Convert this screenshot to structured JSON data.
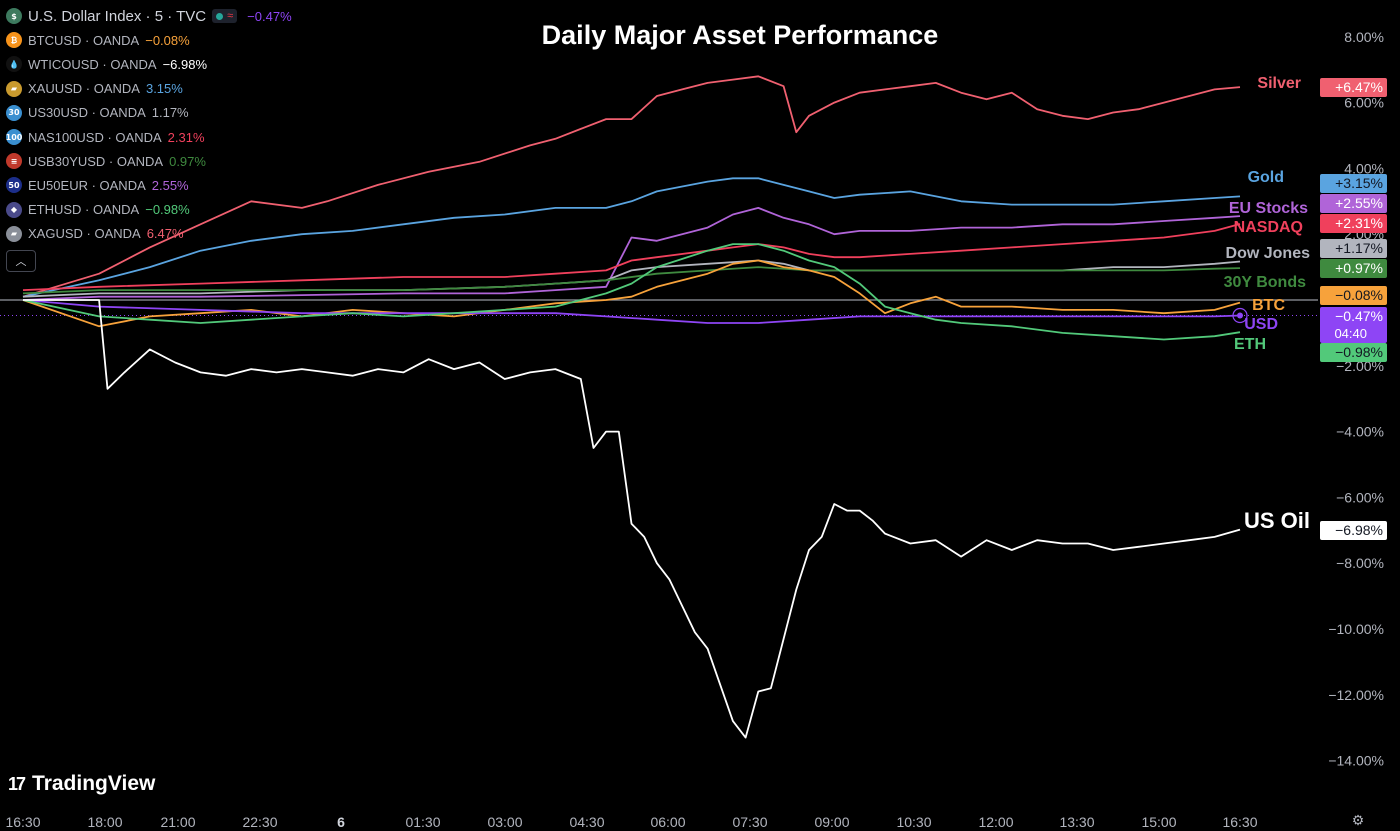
{
  "title": "Daily Major Asset Performance",
  "legend": [
    {
      "symbol": "U.S. Dollar Index · 5 · TVC",
      "change": "−0.47%",
      "color": "#8e45f5",
      "icon": "dollar-icon",
      "icon_bg": "#3d7a5e",
      "icon_text": "$"
    },
    {
      "symbol": "BTCUSD · OANDA",
      "change": "−0.08%",
      "color": "#f7a23b",
      "icon": "bitcoin-icon",
      "icon_bg": "#f7931a",
      "icon_text": "₿"
    },
    {
      "symbol": "WTICOUSD · OANDA",
      "change": "−6.98%",
      "color": "#ffffff",
      "icon": "oil-drop-icon",
      "icon_bg": "#111111",
      "icon_text": "💧"
    },
    {
      "symbol": "XAUUSD · OANDA",
      "change": "3.15%",
      "color": "#5aa4e0",
      "icon": "gold-bars-icon",
      "icon_bg": "#c99a2e",
      "icon_text": "▰"
    },
    {
      "symbol": "US30USD · OANDA",
      "change": "1.17%",
      "color": "#b2b5be",
      "icon": "us30-icon",
      "icon_bg": "#3a8fd0",
      "icon_text": "30"
    },
    {
      "symbol": "NAS100USD · OANDA",
      "change": "2.31%",
      "color": "#f0405c",
      "icon": "nas100-icon",
      "icon_bg": "#3a8fd0",
      "icon_text": "100"
    },
    {
      "symbol": "USB30YUSD · OANDA",
      "change": "0.97%",
      "color": "#3f8a3f",
      "icon": "us-flag-icon",
      "icon_bg": "#c0392b",
      "icon_text": "≡"
    },
    {
      "symbol": "EU50EUR · OANDA",
      "change": "2.55%",
      "color": "#b064d8",
      "icon": "eu50-icon",
      "icon_bg": "#1c2e8a",
      "icon_text": "50"
    },
    {
      "symbol": "ETHUSD · OANDA",
      "change": "−0.98%",
      "color": "#52c97a",
      "icon": "ethereum-icon",
      "icon_bg": "#4a4a8a",
      "icon_text": "◆"
    },
    {
      "symbol": "XAGUSD · OANDA",
      "change": "6.47%",
      "color": "#f06070",
      "icon": "silver-bars-icon",
      "icon_bg": "#8a8f99",
      "icon_text": "▰"
    }
  ],
  "collapse_label": "^",
  "brand": {
    "logo": "17",
    "name": "TradingView"
  },
  "settings_icon": "gear-icon",
  "chart_data": {
    "type": "line",
    "title": "Daily Major Asset Performance",
    "xlabel": "",
    "ylabel": "",
    "x_ticks": [
      "16:30",
      "18:00",
      "21:00",
      "22:30",
      "6",
      "01:30",
      "03:00",
      "04:30",
      "06:00",
      "07:30",
      "09:00",
      "10:30",
      "12:00",
      "13:30",
      "15:00",
      "16:30"
    ],
    "y_ticks": [
      "8.00%",
      "6.00%",
      "4.00%",
      "2.00%",
      "−2.00%",
      "−4.00%",
      "−6.00%",
      "−8.00%",
      "−10.00%",
      "−12.00%",
      "−14.00%"
    ],
    "y_tick_values": [
      8,
      6,
      4,
      2,
      -2,
      -4,
      -6,
      -8,
      -10,
      -12,
      -14
    ],
    "ylim": [
      -15,
      9
    ],
    "grid": false,
    "series": [
      {
        "name": "Silver",
        "end_label": "+6.47%",
        "color": "#f06070",
        "label_color": "#f06070",
        "x": [
          "16:30",
          "18:00",
          "19:00",
          "20:00",
          "21:00",
          "22:00",
          "22:30",
          "23:30",
          "0:30",
          "01:30",
          "02:30",
          "03:00",
          "03:30",
          "04:00",
          "04:30",
          "05:00",
          "05:30",
          "06:00",
          "06:30",
          "07:00",
          "07:30",
          "07:45",
          "08:00",
          "08:30",
          "09:00",
          "09:30",
          "10:00",
          "10:30",
          "11:00",
          "11:30",
          "12:00",
          "12:30",
          "13:00",
          "13:30",
          "14:00",
          "14:30",
          "15:00",
          "15:30",
          "16:00",
          "16:30"
        ],
        "y": [
          0.1,
          0.8,
          1.6,
          2.3,
          3.0,
          2.8,
          3.0,
          3.5,
          3.9,
          4.2,
          4.7,
          4.9,
          5.2,
          5.5,
          5.5,
          6.2,
          6.4,
          6.6,
          6.7,
          6.8,
          6.5,
          5.1,
          5.6,
          6.0,
          6.3,
          6.4,
          6.5,
          6.6,
          6.3,
          6.1,
          6.3,
          5.8,
          5.6,
          5.5,
          5.7,
          5.8,
          6.0,
          6.2,
          6.4,
          6.47
        ]
      },
      {
        "name": "Gold",
        "end_label": "+3.15%",
        "color": "#5aa4e0",
        "label_color": "#5aa4e0",
        "x": [
          "16:30",
          "18:00",
          "19:00",
          "20:00",
          "21:00",
          "22:00",
          "23:00",
          "0:00",
          "01:00",
          "02:00",
          "03:00",
          "04:00",
          "04:30",
          "05:00",
          "06:00",
          "06:30",
          "07:00",
          "07:30",
          "08:00",
          "08:30",
          "09:00",
          "10:00",
          "11:00",
          "12:00",
          "13:00",
          "14:00",
          "15:00",
          "16:00",
          "16:30"
        ],
        "y": [
          0.1,
          0.6,
          1.0,
          1.5,
          1.8,
          2.0,
          2.1,
          2.3,
          2.5,
          2.6,
          2.8,
          2.8,
          3.0,
          3.3,
          3.6,
          3.7,
          3.7,
          3.5,
          3.3,
          3.1,
          3.2,
          3.3,
          3.0,
          2.9,
          2.9,
          2.9,
          3.0,
          3.1,
          3.15
        ]
      },
      {
        "name": "EU Stocks",
        "end_label": "+2.55%",
        "color": "#b064d8",
        "label_color": "#b064d8",
        "x": [
          "16:30",
          "18:00",
          "20:00",
          "22:00",
          "0:00",
          "02:00",
          "03:00",
          "04:00",
          "04:30",
          "05:00",
          "06:00",
          "06:30",
          "07:00",
          "07:30",
          "08:00",
          "08:30",
          "09:00",
          "10:00",
          "11:00",
          "12:00",
          "13:00",
          "14:00",
          "15:00",
          "16:00",
          "16:30"
        ],
        "y": [
          0.0,
          0.1,
          0.1,
          0.15,
          0.2,
          0.2,
          0.3,
          0.4,
          1.9,
          1.8,
          2.2,
          2.6,
          2.8,
          2.5,
          2.3,
          2.0,
          2.1,
          2.1,
          2.2,
          2.2,
          2.3,
          2.3,
          2.4,
          2.5,
          2.55
        ]
      },
      {
        "name": "NASDAQ",
        "end_label": "+2.31%",
        "color": "#f0405c",
        "label_color": "#f0405c",
        "x": [
          "16:30",
          "18:00",
          "20:00",
          "22:00",
          "0:00",
          "02:00",
          "03:00",
          "04:00",
          "04:30",
          "05:00",
          "06:00",
          "06:30",
          "07:00",
          "07:30",
          "08:00",
          "08:30",
          "09:00",
          "10:00",
          "11:00",
          "12:00",
          "13:00",
          "14:00",
          "15:00",
          "16:00",
          "16:30"
        ],
        "y": [
          0.3,
          0.4,
          0.5,
          0.6,
          0.7,
          0.7,
          0.8,
          0.9,
          1.2,
          1.3,
          1.5,
          1.6,
          1.7,
          1.6,
          1.4,
          1.3,
          1.3,
          1.4,
          1.5,
          1.6,
          1.7,
          1.8,
          1.9,
          2.1,
          2.31
        ]
      },
      {
        "name": "Dow Jones",
        "end_label": "+1.17%",
        "color": "#b2b5be",
        "label_color": "#b2b5be",
        "x": [
          "16:30",
          "18:00",
          "20:00",
          "22:00",
          "0:00",
          "02:00",
          "03:00",
          "04:00",
          "04:30",
          "05:00",
          "06:00",
          "07:00",
          "07:30",
          "08:00",
          "09:00",
          "10:00",
          "11:00",
          "12:00",
          "13:00",
          "14:00",
          "15:00",
          "16:00",
          "16:30"
        ],
        "y": [
          0.1,
          0.2,
          0.2,
          0.3,
          0.3,
          0.4,
          0.5,
          0.6,
          0.9,
          1.0,
          1.1,
          1.2,
          1.1,
          0.9,
          0.9,
          0.9,
          0.9,
          0.9,
          0.9,
          1.0,
          1.0,
          1.1,
          1.17
        ]
      },
      {
        "name": "30Y Bonds",
        "end_label": "+0.97%",
        "color": "#3f8a3f",
        "label_color": "#3f8a3f",
        "x": [
          "16:30",
          "18:00",
          "20:00",
          "22:00",
          "0:00",
          "02:00",
          "03:00",
          "04:00",
          "05:00",
          "06:00",
          "07:00",
          "08:00",
          "09:00",
          "10:00",
          "11:00",
          "12:00",
          "13:00",
          "14:00",
          "15:00",
          "16:00",
          "16:30"
        ],
        "y": [
          0.2,
          0.3,
          0.3,
          0.3,
          0.3,
          0.4,
          0.5,
          0.6,
          0.8,
          0.9,
          1.0,
          0.9,
          0.9,
          0.9,
          0.9,
          0.9,
          0.9,
          0.9,
          0.9,
          0.95,
          0.97
        ]
      },
      {
        "name": "BTC",
        "end_label": "−0.08%",
        "color": "#f7a23b",
        "label_color": "#f7a23b",
        "x": [
          "16:30",
          "18:00",
          "19:00",
          "20:00",
          "21:00",
          "22:00",
          "23:00",
          "0:00",
          "01:00",
          "02:00",
          "03:00",
          "04:00",
          "04:30",
          "05:00",
          "06:00",
          "06:30",
          "07:00",
          "07:30",
          "08:00",
          "08:30",
          "09:00",
          "09:30",
          "10:00",
          "10:30",
          "11:00",
          "12:00",
          "13:00",
          "14:00",
          "15:00",
          "16:00",
          "16:30"
        ],
        "y": [
          0.0,
          -0.8,
          -0.5,
          -0.4,
          -0.3,
          -0.5,
          -0.3,
          -0.4,
          -0.5,
          -0.3,
          -0.1,
          0.0,
          0.1,
          0.4,
          0.8,
          1.1,
          1.2,
          1.0,
          0.9,
          0.7,
          0.2,
          -0.4,
          -0.1,
          0.1,
          -0.2,
          -0.2,
          -0.3,
          -0.3,
          -0.4,
          -0.3,
          -0.08
        ]
      },
      {
        "name": "USD",
        "end_label": "−0.47%",
        "end_sublabel": "04:40",
        "color": "#8e45f5",
        "label_color": "#8e45f5",
        "x": [
          "16:30",
          "18:00",
          "20:00",
          "22:00",
          "0:00",
          "02:00",
          "03:00",
          "04:00",
          "05:00",
          "06:00",
          "07:00",
          "08:00",
          "09:00",
          "10:00",
          "11:00",
          "12:00",
          "13:00",
          "14:00",
          "15:00",
          "16:00",
          "16:30"
        ],
        "y": [
          0.0,
          -0.2,
          -0.3,
          -0.4,
          -0.4,
          -0.4,
          -0.4,
          -0.5,
          -0.6,
          -0.7,
          -0.7,
          -0.6,
          -0.5,
          -0.5,
          -0.5,
          -0.5,
          -0.5,
          -0.5,
          -0.5,
          -0.5,
          -0.47
        ]
      },
      {
        "name": "ETH",
        "end_label": "−0.98%",
        "color": "#52c97a",
        "label_color": "#52c97a",
        "x": [
          "16:30",
          "18:00",
          "19:00",
          "20:00",
          "21:00",
          "22:00",
          "23:00",
          "0:00",
          "01:00",
          "02:00",
          "03:00",
          "04:00",
          "04:30",
          "05:00",
          "06:00",
          "06:30",
          "07:00",
          "07:30",
          "08:00",
          "08:30",
          "09:00",
          "09:30",
          "10:00",
          "10:30",
          "11:00",
          "12:00",
          "13:00",
          "14:00",
          "15:00",
          "16:00",
          "16:30"
        ],
        "y": [
          0.0,
          -0.5,
          -0.6,
          -0.7,
          -0.6,
          -0.5,
          -0.4,
          -0.5,
          -0.4,
          -0.3,
          -0.2,
          0.2,
          0.5,
          1.0,
          1.5,
          1.7,
          1.7,
          1.5,
          1.2,
          1.0,
          0.5,
          -0.2,
          -0.4,
          -0.6,
          -0.7,
          -0.8,
          -1.0,
          -1.1,
          -1.2,
          -1.1,
          -0.98
        ]
      },
      {
        "name": "US Oil",
        "end_label": "−6.98%",
        "color": "#ffffff",
        "label_color": "#ffffff",
        "x": [
          "16:30",
          "17:00",
          "17:30",
          "18:00",
          "18:10",
          "18:30",
          "19:00",
          "19:30",
          "20:00",
          "20:30",
          "21:00",
          "21:30",
          "22:00",
          "22:30",
          "23:00",
          "23:30",
          "0:00",
          "0:30",
          "01:00",
          "01:30",
          "02:00",
          "02:30",
          "03:00",
          "03:30",
          "03:45",
          "04:00",
          "04:15",
          "04:30",
          "04:45",
          "05:00",
          "05:15",
          "05:30",
          "05:45",
          "06:00",
          "06:30",
          "06:45",
          "07:00",
          "07:15",
          "07:30",
          "07:45",
          "08:00",
          "08:15",
          "08:30",
          "08:45",
          "09:00",
          "09:15",
          "09:30",
          "10:00",
          "10:30",
          "11:00",
          "11:30",
          "12:00",
          "12:30",
          "13:00",
          "13:30",
          "14:00",
          "14:30",
          "15:00",
          "15:30",
          "16:00",
          "16:30"
        ],
        "y": [
          0.0,
          0.0,
          0.0,
          0.0,
          -2.7,
          -2.2,
          -1.5,
          -1.9,
          -2.2,
          -2.3,
          -2.1,
          -2.2,
          -2.1,
          -2.2,
          -2.3,
          -2.1,
          -2.2,
          -1.8,
          -2.1,
          -1.9,
          -2.4,
          -2.2,
          -2.1,
          -2.4,
          -4.5,
          -4.0,
          -4.0,
          -6.8,
          -7.2,
          -8.0,
          -8.5,
          -9.3,
          -10.1,
          -10.6,
          -12.8,
          -13.3,
          -11.9,
          -11.8,
          -10.3,
          -8.8,
          -7.6,
          -7.2,
          -6.2,
          -6.4,
          -6.4,
          -6.7,
          -7.1,
          -7.4,
          -7.3,
          -7.8,
          -7.3,
          -7.6,
          -7.3,
          -7.4,
          -7.4,
          -7.6,
          -7.5,
          -7.4,
          -7.3,
          -7.2,
          -6.98
        ]
      }
    ]
  }
}
